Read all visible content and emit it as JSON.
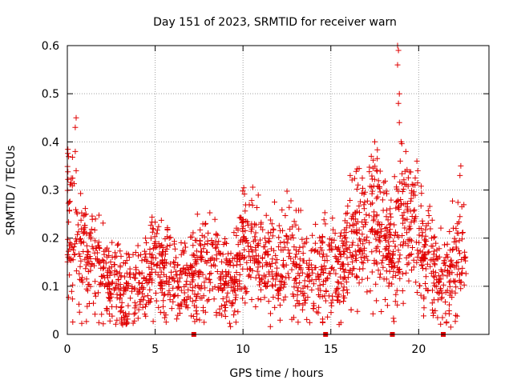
{
  "chart_data": {
    "type": "scatter",
    "title": "Day 151 of 2023, SRMTID for receiver warn",
    "xlabel": "GPS time / hours",
    "ylabel": "SRMTID / TECUs",
    "xlim": [
      0,
      24
    ],
    "ylim": [
      0,
      0.6
    ],
    "x_ticks": [
      0,
      5,
      10,
      15,
      20
    ],
    "y_ticks": [
      0,
      0.1,
      0.2,
      0.3,
      0.4,
      0.5,
      0.6
    ],
    "x_tick_labels": [
      "0",
      "5",
      "10",
      "15",
      "20"
    ],
    "y_tick_labels": [
      "0",
      "0.1",
      "0.2",
      "0.3",
      "0.4",
      "0.5",
      "0.6"
    ],
    "grid": true,
    "marker": "+",
    "series": [
      {
        "name": "SRMTID",
        "color": "#e00000",
        "trend": {
          "x": [
            0,
            0.2,
            0.4,
            0.6,
            1.0,
            1.5,
            2.0,
            2.5,
            3.0,
            3.3,
            3.6,
            4.0,
            4.5,
            5.0,
            5.5,
            6.0,
            6.5,
            7.0,
            7.5,
            8.0,
            8.5,
            9.0,
            9.5,
            10.0,
            10.5,
            11.0,
            11.5,
            12.0,
            12.5,
            13.0,
            13.5,
            14.0,
            14.5,
            15.0,
            15.5,
            16.0,
            16.5,
            17.0,
            17.5,
            18.0,
            18.5,
            19.0,
            19.5,
            20.0,
            20.5,
            21.0,
            21.5,
            22.0,
            22.3,
            22.7
          ],
          "y": [
            0.24,
            0.22,
            0.2,
            0.18,
            0.17,
            0.14,
            0.12,
            0.11,
            0.1,
            0.08,
            0.09,
            0.1,
            0.12,
            0.15,
            0.14,
            0.12,
            0.11,
            0.12,
            0.14,
            0.15,
            0.13,
            0.12,
            0.11,
            0.18,
            0.2,
            0.16,
            0.15,
            0.14,
            0.16,
            0.15,
            0.12,
            0.11,
            0.12,
            0.14,
            0.13,
            0.18,
            0.2,
            0.22,
            0.25,
            0.2,
            0.17,
            0.25,
            0.22,
            0.2,
            0.16,
            0.12,
            0.1,
            0.15,
            0.2,
            0.12
          ]
        },
        "spikes": [
          {
            "x": 0.5,
            "y": 0.45
          },
          {
            "x": 0.45,
            "y": 0.43
          },
          {
            "x": 0.45,
            "y": 0.38
          },
          {
            "x": 0.5,
            "y": 0.34
          },
          {
            "x": 17.5,
            "y": 0.4
          },
          {
            "x": 17.3,
            "y": 0.37
          },
          {
            "x": 18.8,
            "y": 0.6
          },
          {
            "x": 18.85,
            "y": 0.59
          },
          {
            "x": 18.8,
            "y": 0.56
          },
          {
            "x": 18.9,
            "y": 0.5
          },
          {
            "x": 18.85,
            "y": 0.48
          },
          {
            "x": 18.9,
            "y": 0.44
          },
          {
            "x": 19.0,
            "y": 0.4
          },
          {
            "x": 18.95,
            "y": 0.36
          },
          {
            "x": 19.9,
            "y": 0.36
          },
          {
            "x": 19.95,
            "y": 0.34
          },
          {
            "x": 16.1,
            "y": 0.33
          },
          {
            "x": 22.4,
            "y": 0.35
          },
          {
            "x": 22.35,
            "y": 0.33
          },
          {
            "x": 3.15,
            "y": 0.02
          },
          {
            "x": 3.1,
            "y": 0.03
          }
        ]
      }
    ],
    "axis_markers": {
      "color": "#e00000",
      "x": [
        7.2,
        14.7,
        18.5,
        21.4
      ]
    }
  }
}
